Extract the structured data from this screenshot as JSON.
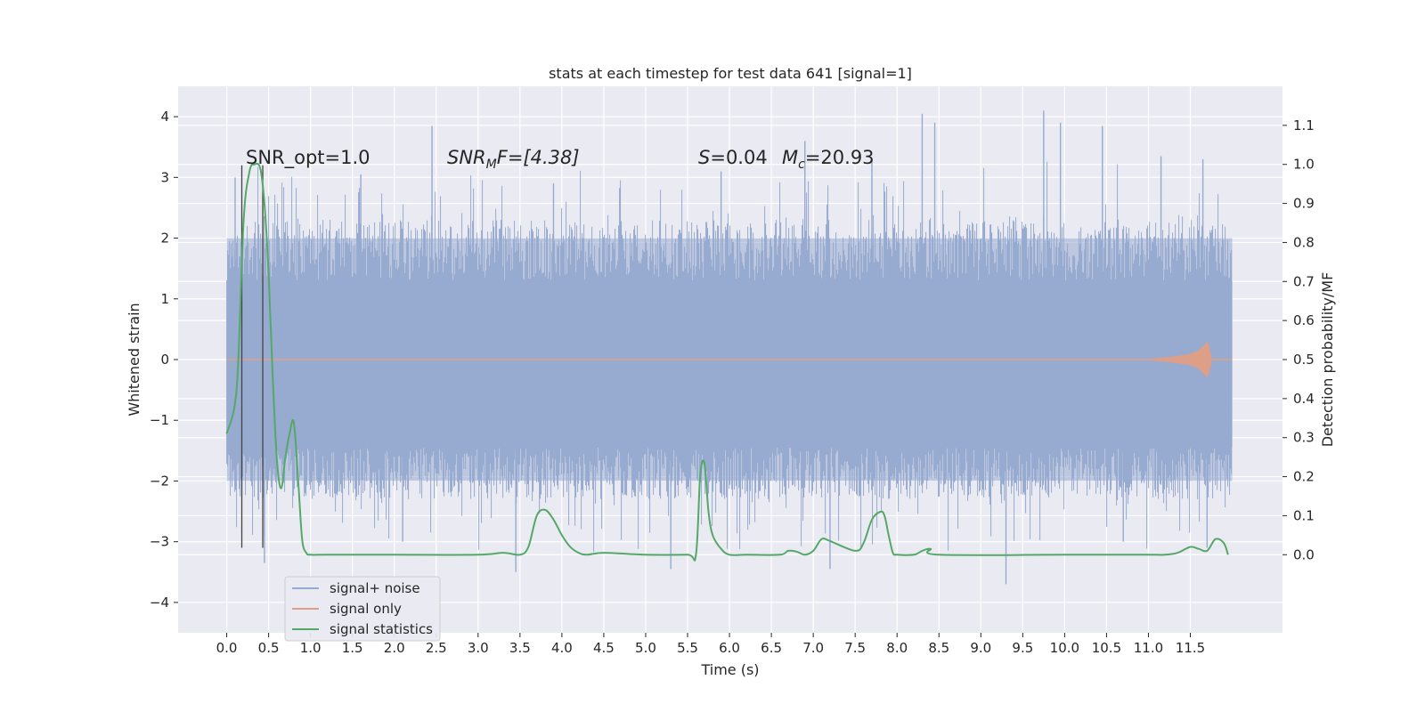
{
  "chart_data": {
    "type": "line",
    "title": "stats at each timestep for test data 641 [signal=1]",
    "xlabel": "Time (s)",
    "ylabel_left": "Whitened strain",
    "ylabel_right": "Detection probability/MF",
    "xlim": [
      -0.58,
      12.6
    ],
    "ylim_left": [
      -4.5,
      4.5
    ],
    "ylim_right": [
      -0.2,
      1.2
    ],
    "x_ticks": [
      0.0,
      0.5,
      1.0,
      1.5,
      2.0,
      2.5,
      3.0,
      3.5,
      4.0,
      4.5,
      5.0,
      5.5,
      6.0,
      6.5,
      7.0,
      7.5,
      8.0,
      8.5,
      9.0,
      9.5,
      10.0,
      10.5,
      11.0,
      11.5
    ],
    "x_tick_labels": [
      "0.0",
      "0.5",
      "1.0",
      "1.5",
      "2.0",
      "2.5",
      "3.0",
      "3.5",
      "4.0",
      "4.5",
      "5.0",
      "5.5",
      "6.0",
      "6.5",
      "7.0",
      "7.5",
      "8.0",
      "8.5",
      "9.0",
      "9.5",
      "10.0",
      "10.5",
      "11.0",
      "11.5"
    ],
    "y_left_ticks": [
      -4,
      -3,
      -2,
      -1,
      0,
      1,
      2,
      3,
      4
    ],
    "y_left_tick_labels": [
      "−4",
      "−3",
      "−2",
      "−1",
      "0",
      "1",
      "2",
      "3",
      "4"
    ],
    "y_right_ticks": [
      0.0,
      0.1,
      0.2,
      0.3,
      0.4,
      0.5,
      0.6,
      0.7,
      0.8,
      0.9,
      1.0,
      1.1
    ],
    "y_right_tick_labels": [
      "0.0",
      "0.1",
      "0.2",
      "0.3",
      "0.4",
      "0.5",
      "0.6",
      "0.7",
      "0.8",
      "0.9",
      "1.0",
      "1.1"
    ],
    "grid": true,
    "legend_position": "lower-left",
    "annotations": {
      "snr_opt": "SNR_opt=1.0",
      "snr_mf_main": "SNR",
      "snr_mf_sub": "M",
      "snr_mf_rest": "F=[4.38]",
      "s_main": "S",
      "s_rest": "=0.04",
      "mc_main": "M",
      "mc_sub": "c",
      "mc_rest": "=20.93"
    },
    "vlines": [
      0.18,
      0.43
    ],
    "vline_range": [
      -3.1,
      3.2
    ],
    "series": [
      {
        "name": "signal+ noise",
        "color": "#97aacf",
        "x_range": [
          0.0,
          12.0
        ],
        "band_inner": [
          -1.45,
          1.3
        ],
        "band_outer": [
          -2.0,
          2.0
        ],
        "spike_extremes": [
          [
            2.45,
            3.85
          ],
          [
            6.9,
            3.6
          ],
          [
            8.3,
            4.05
          ],
          [
            8.45,
            3.9
          ],
          [
            9.75,
            4.1
          ],
          [
            9.95,
            3.9
          ],
          [
            10.45,
            3.85
          ],
          [
            11.15,
            3.35
          ],
          [
            11.65,
            3.3
          ],
          [
            0.1,
            3.0
          ],
          [
            1.6,
            3.05
          ],
          [
            3.9,
            2.9
          ],
          [
            5.9,
            3.1
          ],
          [
            7.7,
            3.3
          ],
          [
            0.45,
            -3.35
          ],
          [
            3.45,
            -3.5
          ],
          [
            5.3,
            -3.45
          ],
          [
            7.2,
            -3.45
          ],
          [
            9.3,
            -3.7
          ],
          [
            10.7,
            -3.0
          ],
          [
            11.7,
            -3.1
          ],
          [
            2.1,
            -3.0
          ]
        ]
      },
      {
        "name": "signal only",
        "color": "#dd9f88",
        "x": [
          0.0,
          11.0,
          11.3,
          11.5,
          11.6,
          11.65,
          11.7,
          11.72,
          11.75,
          11.8,
          12.0
        ],
        "amplitude": [
          0.0,
          0.0,
          0.04,
          0.08,
          0.14,
          0.2,
          0.28,
          0.2,
          0.0,
          0.0,
          0.0
        ]
      },
      {
        "name": "signal statistics",
        "color": "#55a868",
        "x": [
          0.0,
          0.12,
          0.2,
          0.27,
          0.33,
          0.4,
          0.45,
          0.5,
          0.55,
          0.6,
          0.65,
          0.7,
          0.75,
          0.8,
          0.85,
          0.9,
          0.95,
          1.0,
          1.2,
          2.0,
          3.0,
          3.3,
          3.5,
          3.6,
          3.7,
          3.8,
          3.9,
          4.0,
          4.1,
          4.2,
          4.3,
          4.5,
          5.0,
          5.5,
          5.6,
          5.65,
          5.7,
          5.75,
          5.8,
          5.9,
          6.0,
          6.2,
          6.6,
          6.7,
          6.8,
          6.9,
          7.0,
          7.1,
          7.2,
          7.5,
          7.6,
          7.7,
          7.8,
          7.85,
          7.9,
          7.95,
          8.0,
          8.2,
          8.3,
          8.4,
          8.5,
          10.0,
          11.0,
          11.2,
          11.35,
          11.5,
          11.6,
          11.7,
          11.8,
          11.9,
          11.95
        ],
        "y": [
          0.31,
          0.43,
          0.85,
          0.98,
          1.0,
          0.99,
          0.9,
          0.72,
          0.45,
          0.24,
          0.17,
          0.25,
          0.31,
          0.34,
          0.2,
          0.04,
          0.005,
          0.0,
          0.0,
          0.0,
          0.0,
          0.005,
          0.0,
          0.02,
          0.1,
          0.115,
          0.09,
          0.05,
          0.02,
          0.005,
          0.0,
          0.005,
          0.0,
          0.0,
          0.0,
          0.2,
          0.235,
          0.11,
          0.05,
          0.015,
          0.0,
          0.0,
          0.0,
          0.01,
          0.008,
          0.0,
          0.01,
          0.04,
          0.035,
          0.01,
          0.03,
          0.09,
          0.11,
          0.1,
          0.05,
          0.005,
          0.0,
          0.0,
          0.01,
          0.015,
          0.0,
          0.0,
          0.0,
          0.0,
          0.005,
          0.02,
          0.015,
          0.01,
          0.04,
          0.03,
          0.0
        ]
      }
    ]
  }
}
